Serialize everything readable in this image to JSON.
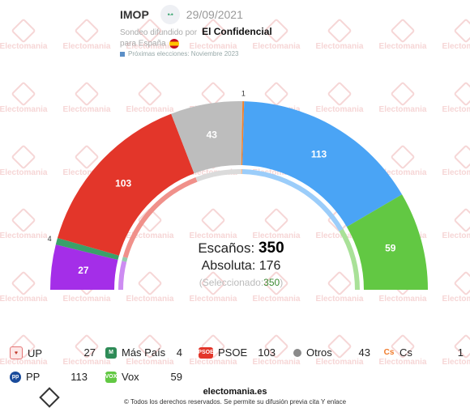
{
  "header": {
    "pollster": "IMOP",
    "pollster_logo_text": "•·•",
    "date": "29/09/2021",
    "spread_by_prefix": "Sondeo difundido por",
    "media": "El Confidencial",
    "for_country": "para España",
    "next_elections": "Próximas elecciones: Noviembre 2023"
  },
  "watermark": {
    "text": "Electomania"
  },
  "center": {
    "seats_label": "Escaños:",
    "seats_total": "350",
    "majority": "Absoluta: 176",
    "selected_prefix": "(Seleccionado:",
    "selected_value": "350",
    "selected_suffix": ")"
  },
  "chart_data": {
    "type": "pie",
    "subtype": "parliament-hemicycle",
    "total_seats": 350,
    "majority": 176,
    "selected": 350,
    "series": [
      {
        "name": "UP",
        "value": 27,
        "color": "#a42ee8",
        "label": "27"
      },
      {
        "name": "Más País",
        "value": 4,
        "color": "#3aa06a",
        "label": "4"
      },
      {
        "name": "PSOE",
        "value": 103,
        "color": "#e3362a",
        "label": "103"
      },
      {
        "name": "Otros",
        "value": 43,
        "color": "#bdbdbd",
        "label": "43"
      },
      {
        "name": "Cs",
        "value": 1,
        "color": "#f5822a",
        "label": "1"
      },
      {
        "name": "PP",
        "value": 113,
        "color": "#4aa4f5",
        "label": "113"
      },
      {
        "name": "Vox",
        "value": 59,
        "color": "#62c843",
        "label": "59"
      }
    ]
  },
  "legend": {
    "items": [
      {
        "name": "UP",
        "value": "27",
        "icon": "heart-icon",
        "color": "#c0392b"
      },
      {
        "name": "Más País",
        "value": "4",
        "icon": "mas-pais-logo-icon",
        "color": "#2e8b57"
      },
      {
        "name": "PSOE",
        "value": "103",
        "icon": "psoe-logo-icon",
        "color": "#e3362a"
      },
      {
        "name": "Otros",
        "value": "43",
        "icon": "dot-icon",
        "color": "#8a8a8a"
      },
      {
        "name": "Cs",
        "value": "1",
        "icon": "cs-logo-icon",
        "color": "#f07a2a"
      },
      {
        "name": "PP",
        "value": "113",
        "icon": "pp-logo-icon",
        "color": "#1a4b9b"
      },
      {
        "name": "Vox",
        "value": "59",
        "icon": "vox-logo-icon",
        "color": "#62c843"
      }
    ]
  },
  "footer": {
    "site": "electomania.es",
    "copyright": "© Todos los derechos reservados. Se permite su difusión previa cita Y enlace"
  }
}
